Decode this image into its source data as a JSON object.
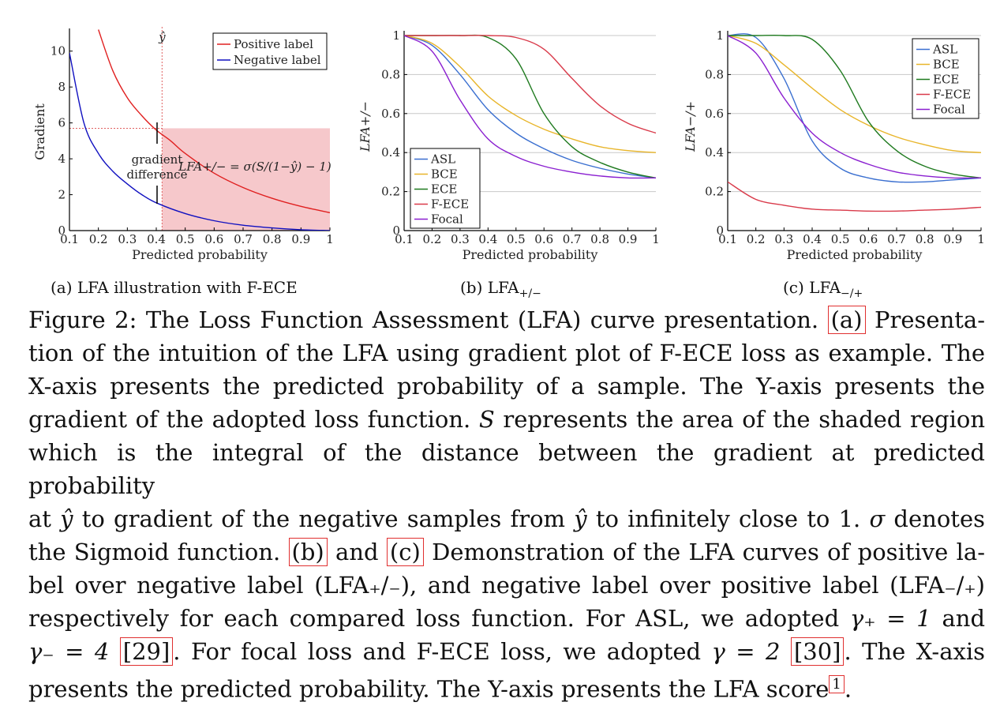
{
  "panel_a": {
    "ylabel": "Gradient",
    "xlabel": "Predicted probability",
    "yhat_label": "ŷ",
    "annotation_1": "gradient",
    "annotation_2": "difference",
    "formula": "LFA+/− = σ(S/(1−ŷ) − 1)",
    "legend": [
      "Positive label",
      "Negative label"
    ],
    "subcaption": "(a) LFA illustration with F-ECE",
    "colors": {
      "positive": "#e02020",
      "negative": "#1010c0",
      "shade": "#f6c8cb"
    }
  },
  "panel_b": {
    "ylabel": "LFA+/−",
    "xlabel": "Predicted probability",
    "subcaption_main": "(b) LFA",
    "subcaption_sub": "+/−"
  },
  "panel_c": {
    "ylabel": "LFA−/+",
    "xlabel": "Predicted probability",
    "subcaption_main": "(c) LFA",
    "subcaption_sub": "−/+"
  },
  "legend_series": [
    {
      "name": "ASL",
      "color": "#3a6fd0"
    },
    {
      "name": "BCE",
      "color": "#e8b52a"
    },
    {
      "name": "ECE",
      "color": "#1f7a1f"
    },
    {
      "name": "F-ECE",
      "color": "#d93a4a"
    },
    {
      "name": "Focal",
      "color": "#8a1fd0"
    }
  ],
  "chart_data": [
    {
      "type": "line",
      "x": [
        0.1,
        0.2,
        0.3,
        0.4,
        0.5,
        0.6,
        0.7,
        0.8,
        0.9,
        1.0
      ],
      "xlim": [
        0.1,
        1.0
      ],
      "ylim": [
        0,
        11
      ],
      "xticks": [
        "0.1",
        "0.2",
        "0.3",
        "0.4",
        "0.5",
        "0.6",
        "0.7",
        "0.8",
        "0.9",
        "1"
      ],
      "yticks": [
        "0",
        "2",
        "4",
        "6",
        "8",
        "10"
      ],
      "series": [
        {
          "name": "Positive label",
          "x": [
            0.2,
            0.25,
            0.3,
            0.35,
            0.4,
            0.45,
            0.5,
            0.6,
            0.7,
            0.8,
            0.9,
            1.0
          ],
          "values": [
            11.2,
            8.9,
            7.4,
            6.4,
            5.6,
            5.0,
            4.3,
            3.2,
            2.4,
            1.8,
            1.35,
            1.0
          ]
        },
        {
          "name": "Negative label",
          "x": [
            0.1,
            0.15,
            0.2,
            0.25,
            0.3,
            0.35,
            0.4,
            0.5,
            0.6,
            0.7,
            0.8,
            0.9,
            1.0
          ],
          "values": [
            9.9,
            6.0,
            4.3,
            3.3,
            2.6,
            2.0,
            1.55,
            0.95,
            0.55,
            0.3,
            0.15,
            0.05,
            0.0
          ]
        }
      ],
      "yhat": 0.42,
      "shade_top": 5.7
    },
    {
      "type": "line",
      "x": [
        0.1,
        0.2,
        0.3,
        0.4,
        0.5,
        0.6,
        0.7,
        0.8,
        0.9,
        1.0
      ],
      "xlim": [
        0.1,
        1.0
      ],
      "ylim": [
        0,
        1
      ],
      "xticks": [
        "0.1",
        "0.2",
        "0.3",
        "0.4",
        "0.5",
        "0.6",
        "0.7",
        "0.8",
        "0.9",
        "1"
      ],
      "yticks": [
        "0",
        "0.2",
        "0.4",
        "0.6",
        "0.8",
        "1"
      ],
      "legend": "bottom-left",
      "grid": true,
      "series": [
        {
          "name": "ASL",
          "values": [
            1.0,
            0.95,
            0.8,
            0.62,
            0.5,
            0.42,
            0.36,
            0.32,
            0.29,
            0.27
          ]
        },
        {
          "name": "BCE",
          "values": [
            1.0,
            0.96,
            0.84,
            0.69,
            0.59,
            0.52,
            0.47,
            0.43,
            0.41,
            0.4
          ]
        },
        {
          "name": "ECE",
          "values": [
            1.0,
            1.0,
            1.0,
            0.99,
            0.88,
            0.6,
            0.43,
            0.35,
            0.3,
            0.27
          ]
        },
        {
          "name": "F-ECE",
          "values": [
            1.0,
            1.0,
            1.0,
            1.0,
            0.99,
            0.93,
            0.78,
            0.64,
            0.55,
            0.5
          ]
        },
        {
          "name": "Focal",
          "values": [
            1.0,
            0.92,
            0.67,
            0.47,
            0.38,
            0.33,
            0.3,
            0.28,
            0.27,
            0.27
          ]
        }
      ]
    },
    {
      "type": "line",
      "x": [
        0.1,
        0.2,
        0.3,
        0.4,
        0.5,
        0.6,
        0.7,
        0.8,
        0.9,
        1.0
      ],
      "xlim": [
        0.1,
        1.0
      ],
      "ylim": [
        0,
        1
      ],
      "xticks": [
        "0.1",
        "0.2",
        "0.3",
        "0.4",
        "0.5",
        "0.6",
        "0.7",
        "0.8",
        "0.9",
        "1"
      ],
      "yticks": [
        "0",
        "0.2",
        "0.4",
        "0.6",
        "0.8",
        "1"
      ],
      "legend": "top-right",
      "grid": true,
      "series": [
        {
          "name": "ASL",
          "values": [
            1.0,
            0.99,
            0.78,
            0.46,
            0.32,
            0.27,
            0.25,
            0.25,
            0.26,
            0.27
          ]
        },
        {
          "name": "BCE",
          "values": [
            1.0,
            0.96,
            0.85,
            0.73,
            0.62,
            0.54,
            0.48,
            0.44,
            0.41,
            0.4
          ]
        },
        {
          "name": "ECE",
          "values": [
            1.0,
            1.0,
            1.0,
            0.98,
            0.82,
            0.56,
            0.41,
            0.33,
            0.29,
            0.27
          ]
        },
        {
          "name": "F-ECE",
          "values": [
            0.25,
            0.16,
            0.13,
            0.11,
            0.105,
            0.1,
            0.1,
            0.105,
            0.11,
            0.12
          ]
        },
        {
          "name": "Focal",
          "values": [
            1.0,
            0.91,
            0.68,
            0.5,
            0.4,
            0.34,
            0.3,
            0.28,
            0.27,
            0.27
          ]
        }
      ]
    }
  ],
  "caption": {
    "lines": [
      [
        {
          "t": "Figure 2: The Loss Function Assessment (LFA) curve presentation. "
        },
        {
          "t": "(a)",
          "ref": true
        },
        {
          "t": " Presenta-"
        }
      ],
      [
        {
          "t": "tion of the intuition of the LFA using gradient plot of F-ECE loss as example. The"
        }
      ],
      [
        {
          "t": "X-axis presents the predicted probability of a sample.  The Y-axis presents the"
        }
      ],
      [
        {
          "t": "gradient of the adopted loss function. "
        },
        {
          "t": "S",
          "m": true
        },
        {
          "t": " represents the area of the shaded region"
        }
      ],
      [
        {
          "t": "which is the integral of the distance between the gradient at predicted probability"
        }
      ],
      [
        {
          "t": "at "
        },
        {
          "t": "ŷ",
          "m": true
        },
        {
          "t": " to gradient of the negative samples from "
        },
        {
          "t": "ŷ",
          "m": true
        },
        {
          "t": " to infinitely close to 1. "
        },
        {
          "t": "σ",
          "m": true
        },
        {
          "t": " denotes"
        }
      ],
      [
        {
          "t": "the Sigmoid function. "
        },
        {
          "t": "(b)",
          "ref": true
        },
        {
          "t": " and "
        },
        {
          "t": "(c)",
          "ref": true
        },
        {
          "t": " Demonstration of the LFA curves of positive la-"
        }
      ],
      [
        {
          "t": "bel over negative label (LFA₊/₋), and negative label over positive label (LFA₋/₊)"
        }
      ],
      [
        {
          "t": "respectively for each compared loss function.  For ASL, we adopted "
        },
        {
          "t": "γ₊ = 1",
          "m": true
        },
        {
          "t": " and"
        }
      ],
      [
        {
          "t": "γ₋ = 4",
          "m": true
        },
        {
          "t": " "
        },
        {
          "t": "[29]",
          "ref": true
        },
        {
          "t": ".  For focal loss and F-ECE loss, we adopted "
        },
        {
          "t": "γ = 2",
          "m": true
        },
        {
          "t": " "
        },
        {
          "t": "[30]",
          "ref": true
        },
        {
          "t": ".  The X-axis"
        }
      ],
      [
        {
          "t": "presents the predicted probability. The Y-axis presents the LFA score"
        },
        {
          "t": "1",
          "ref": true,
          "sup": true
        },
        {
          "t": "."
        }
      ]
    ]
  }
}
